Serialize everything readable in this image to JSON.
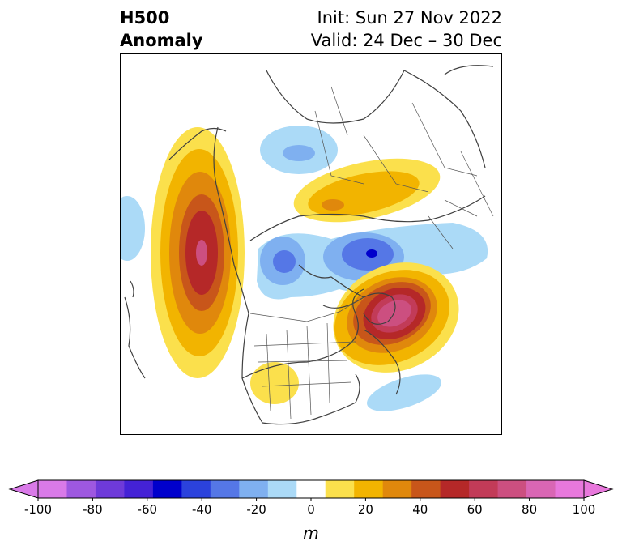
{
  "header": {
    "title_line1": "H500",
    "title_line2": "Anomaly",
    "init": "Init: Sun 27 Nov 2022",
    "valid": "Valid: 24 Dec – 30 Dec"
  },
  "colorbar": {
    "unit": "m",
    "tick_labels": [
      "-100",
      "-80",
      "-60",
      "-40",
      "-20",
      "0",
      "20",
      "40",
      "60",
      "80",
      "100"
    ],
    "colors": [
      "#d97ae8",
      "#9e58e0",
      "#6e3ad9",
      "#4422d6",
      "#0000cc",
      "#2b42dc",
      "#5577e6",
      "#7fb0f0",
      "#abdaf7",
      "#ffffff",
      "#fbe04c",
      "#f2b400",
      "#e0880c",
      "#c8561a",
      "#b52828",
      "#c23b58",
      "#cc4f80",
      "#d966b4",
      "#e878dc"
    ],
    "min_arrow_color": "#d97ae8",
    "max_arrow_color": "#e878dc"
  },
  "map": {
    "projection": "polar-stereographic-north",
    "region": "North America / Arctic",
    "anomaly_centers": [
      {
        "type": "positive",
        "location": "NE Pacific / Gulf of Alaska coast",
        "peak_m": 100
      },
      {
        "type": "positive",
        "location": "North Atlantic SE of Greenland",
        "peak_m": 90
      },
      {
        "type": "positive",
        "location": "Northern Eurasia / Siberia",
        "peak_m": 40
      },
      {
        "type": "positive",
        "location": "SW United States",
        "peak_m": 20
      },
      {
        "type": "negative",
        "location": "Arctic Ocean near Greenland",
        "peak_m": -60
      },
      {
        "type": "negative",
        "location": "Beaufort Sea / N Canada",
        "peak_m": -40
      },
      {
        "type": "negative",
        "location": "Northern Scandinavia / Barents",
        "peak_m": -20
      },
      {
        "type": "negative",
        "location": "Western North Pacific",
        "peak_m": -20
      },
      {
        "type": "negative",
        "location": "Subtropical North Atlantic",
        "peak_m": -20
      }
    ]
  }
}
